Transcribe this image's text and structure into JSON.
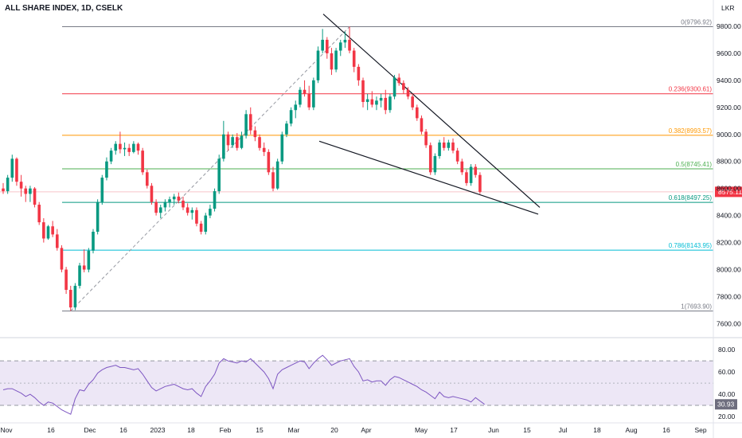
{
  "title": "ALL SHARE INDEX, 1D, CSELK",
  "currency": "LKR",
  "theme": {
    "up": "#089981",
    "down": "#f23645",
    "rsi": "#7e57c2",
    "rsi_band": "#ede7f6",
    "last_badge": "#f23645",
    "rsi_badge": "#6e6e7e"
  },
  "chart_data": [
    {
      "type": "candlestick",
      "title": "ALL SHARE INDEX, 1D, CSELK",
      "ylim": [
        7520,
        9900
      ],
      "y_ticks": [
        7600,
        7800,
        8000,
        8200,
        8400,
        8600,
        8800,
        9000,
        9200,
        9400,
        9600,
        9800
      ],
      "y_tick_labels": [
        "7600.00",
        "7800.00",
        "8000.00",
        "8200.00",
        "8400.00",
        "8600.00",
        "8800.00",
        "9000.00",
        "9200.00",
        "9400.00",
        "9600.00",
        "9800.00"
      ],
      "x_ticks": [
        "Nov",
        "16",
        "Dec",
        "16",
        "2023",
        "18",
        "Feb",
        "15",
        "Mar",
        "20",
        "Apr",
        "May",
        "17",
        "Jun",
        "15",
        "Jul",
        "18",
        "Aug",
        "16",
        "Sep"
      ],
      "last_price_label": "8575.11",
      "last_price": 8575.11,
      "candles": [
        [
          8600,
          8640,
          8560,
          8580
        ],
        [
          8580,
          8700,
          8560,
          8680
        ],
        [
          8680,
          8850,
          8650,
          8820
        ],
        [
          8820,
          8830,
          8620,
          8650
        ],
        [
          8650,
          8700,
          8540,
          8600
        ],
        [
          8600,
          8620,
          8500,
          8560
        ],
        [
          8560,
          8620,
          8500,
          8600
        ],
        [
          8600,
          8610,
          8460,
          8480
        ],
        [
          8480,
          8500,
          8330,
          8350
        ],
        [
          8350,
          8380,
          8200,
          8230
        ],
        [
          8230,
          8330,
          8220,
          8320
        ],
        [
          8320,
          8360,
          8240,
          8260
        ],
        [
          8260,
          8300,
          8140,
          8160
        ],
        [
          8160,
          8180,
          7980,
          8000
        ],
        [
          8000,
          8020,
          7820,
          7850
        ],
        [
          7850,
          7880,
          7694,
          7720
        ],
        [
          7720,
          7900,
          7700,
          7880
        ],
        [
          7880,
          8050,
          7860,
          8030
        ],
        [
          8030,
          8150,
          7980,
          8000
        ],
        [
          8000,
          8160,
          7980,
          8140
        ],
        [
          8140,
          8300,
          8120,
          8280
        ],
        [
          8280,
          8520,
          8260,
          8500
        ],
        [
          8500,
          8700,
          8480,
          8680
        ],
        [
          8680,
          8830,
          8660,
          8800
        ],
        [
          8800,
          8900,
          8780,
          8880
        ],
        [
          8880,
          8950,
          8850,
          8930
        ],
        [
          8930,
          9020,
          8860,
          8890
        ],
        [
          8890,
          8940,
          8840,
          8900
        ],
        [
          8900,
          8930,
          8840,
          8870
        ],
        [
          8870,
          8950,
          8860,
          8930
        ],
        [
          8930,
          8940,
          8850,
          8880
        ],
        [
          8880,
          8900,
          8700,
          8720
        ],
        [
          8720,
          8740,
          8600,
          8620
        ],
        [
          8620,
          8640,
          8480,
          8500
        ],
        [
          8500,
          8520,
          8400,
          8420
        ],
        [
          8420,
          8480,
          8380,
          8460
        ],
        [
          8460,
          8520,
          8430,
          8500
        ],
        [
          8500,
          8540,
          8460,
          8520
        ],
        [
          8520,
          8560,
          8480,
          8540
        ],
        [
          8540,
          8570,
          8490,
          8510
        ],
        [
          8510,
          8540,
          8440,
          8460
        ],
        [
          8460,
          8490,
          8400,
          8420
        ],
        [
          8420,
          8460,
          8370,
          8440
        ],
        [
          8440,
          8460,
          8320,
          8340
        ],
        [
          8340,
          8360,
          8260,
          8280
        ],
        [
          8280,
          8420,
          8260,
          8400
        ],
        [
          8400,
          8480,
          8380,
          8450
        ],
        [
          8450,
          8600,
          8430,
          8580
        ],
        [
          8580,
          8850,
          8560,
          8820
        ],
        [
          8820,
          9100,
          8800,
          9000
        ],
        [
          9000,
          9020,
          8880,
          8920
        ],
        [
          8920,
          9000,
          8900,
          8980
        ],
        [
          8980,
          9010,
          8880,
          8900
        ],
        [
          8900,
          9020,
          8890,
          8990
        ],
        [
          8990,
          9180,
          8970,
          9150
        ],
        [
          9150,
          9200,
          9000,
          9030
        ],
        [
          9030,
          9060,
          8950,
          8980
        ],
        [
          8980,
          9000,
          8880,
          8900
        ],
        [
          8900,
          8940,
          8840,
          8870
        ],
        [
          8870,
          8890,
          8700,
          8720
        ],
        [
          8720,
          8760,
          8580,
          8600
        ],
        [
          8600,
          8820,
          8590,
          8800
        ],
        [
          8800,
          9020,
          8780,
          9000
        ],
        [
          9000,
          9100,
          8980,
          9080
        ],
        [
          9080,
          9200,
          9060,
          9180
        ],
        [
          9180,
          9250,
          9120,
          9220
        ],
        [
          9220,
          9350,
          9200,
          9330
        ],
        [
          9330,
          9400,
          9280,
          9300
        ],
        [
          9300,
          9360,
          9180,
          9200
        ],
        [
          9200,
          9420,
          9180,
          9400
        ],
        [
          9400,
          9650,
          9380,
          9620
        ],
        [
          9620,
          9780,
          9600,
          9700
        ],
        [
          9700,
          9720,
          9560,
          9600
        ],
        [
          9600,
          9640,
          9440,
          9480
        ],
        [
          9480,
          9640,
          9460,
          9620
        ],
        [
          9620,
          9700,
          9580,
          9680
        ],
        [
          9680,
          9760,
          9640,
          9700
        ],
        [
          9700,
          9797,
          9600,
          9620
        ],
        [
          9620,
          9640,
          9460,
          9500
        ],
        [
          9500,
          9520,
          9360,
          9400
        ],
        [
          9400,
          9420,
          9200,
          9240
        ],
        [
          9240,
          9300,
          9180,
          9260
        ],
        [
          9260,
          9320,
          9200,
          9220
        ],
        [
          9220,
          9280,
          9180,
          9250
        ],
        [
          9250,
          9300,
          9200,
          9270
        ],
        [
          9270,
          9330,
          9150,
          9180
        ],
        [
          9180,
          9300,
          9160,
          9280
        ],
        [
          9280,
          9440,
          9260,
          9420
        ],
        [
          9420,
          9450,
          9360,
          9380
        ],
        [
          9380,
          9400,
          9300,
          9330
        ],
        [
          9330,
          9350,
          9260,
          9280
        ],
        [
          9280,
          9300,
          9180,
          9200
        ],
        [
          9200,
          9220,
          9100,
          9120
        ],
        [
          9120,
          9140,
          9000,
          9020
        ],
        [
          9020,
          9040,
          8900,
          8920
        ],
        [
          8920,
          8940,
          8700,
          8720
        ],
        [
          8720,
          8860,
          8700,
          8840
        ],
        [
          8840,
          8960,
          8820,
          8940
        ],
        [
          8940,
          8980,
          8880,
          8900
        ],
        [
          8900,
          8960,
          8880,
          8940
        ],
        [
          8940,
          8970,
          8860,
          8880
        ],
        [
          8880,
          8900,
          8780,
          8800
        ],
        [
          8800,
          8820,
          8700,
          8720
        ],
        [
          8720,
          8740,
          8620,
          8640
        ],
        [
          8640,
          8780,
          8620,
          8760
        ],
        [
          8760,
          8780,
          8680,
          8700
        ],
        [
          8700,
          8720,
          8560,
          8575.11
        ]
      ],
      "horizontal_levels": [
        {
          "label": "0(9796.92)",
          "value": 9796.92,
          "color": "#787b86"
        },
        {
          "label": "0.236(9300.61)",
          "value": 9300.61,
          "color": "#f23645"
        },
        {
          "label": "0.382(8993.57)",
          "value": 8993.57,
          "color": "#ff9800"
        },
        {
          "label": "0.5(8745.41)",
          "value": 8745.41,
          "color": "#4caf50"
        },
        {
          "label": "0.618(8497.25)",
          "value": 8497.25,
          "color": "#089981"
        },
        {
          "label": "0.786(8143.95)",
          "value": 8143.95,
          "color": "#00bcd4"
        },
        {
          "label": "1(7693.90)",
          "value": 7693.9,
          "color": "#787b86"
        }
      ]
    },
    {
      "type": "line",
      "title": "",
      "ylim": [
        15,
        88
      ],
      "y_ticks": [
        20,
        40,
        60,
        80
      ],
      "y_tick_labels": [
        "20.00",
        "40.00",
        "60.00",
        "80.00"
      ],
      "band": [
        30,
        70
      ],
      "last_value_label": "30.93",
      "values": [
        44,
        45,
        45,
        43,
        41,
        38,
        40,
        37,
        33,
        30,
        33,
        32,
        29,
        26,
        24,
        22,
        36,
        44,
        43,
        49,
        53,
        59,
        62,
        64,
        65,
        66,
        64,
        64,
        63,
        62,
        63,
        58,
        52,
        46,
        43,
        45,
        47,
        48,
        49,
        47,
        45,
        44,
        45,
        41,
        38,
        47,
        52,
        58,
        68,
        72,
        70,
        69,
        68,
        70,
        69,
        72,
        68,
        64,
        60,
        54,
        45,
        58,
        62,
        64,
        66,
        68,
        70,
        69,
        63,
        68,
        72,
        75,
        71,
        66,
        68,
        70,
        71,
        72,
        65,
        60,
        52,
        53,
        51,
        52,
        52,
        48,
        53,
        56,
        55,
        53,
        51,
        49,
        47,
        44,
        42,
        39,
        36,
        42,
        38,
        37,
        38,
        37,
        36,
        35,
        33,
        37,
        34,
        30.93
      ]
    }
  ]
}
